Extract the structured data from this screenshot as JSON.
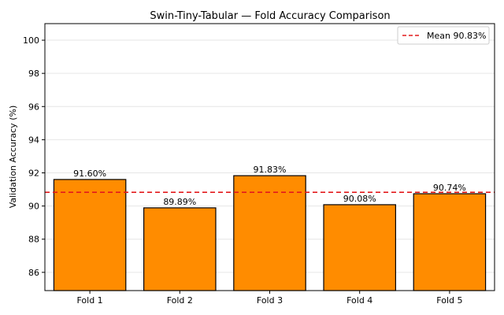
{
  "chart_data": {
    "type": "bar",
    "title": "Swin-Tiny-Tabular — Fold Accuracy Comparison",
    "xlabel": "",
    "ylabel": "Validation Accuracy (%)",
    "categories": [
      "Fold 1",
      "Fold 2",
      "Fold 3",
      "Fold 4",
      "Fold 5"
    ],
    "values": [
      91.6,
      89.89,
      91.83,
      90.08,
      90.74
    ],
    "value_labels": [
      "91.60%",
      "89.89%",
      "91.83%",
      "90.08%",
      "90.74%"
    ],
    "ylim": [
      84.9,
      101.0
    ],
    "yticks": [
      86,
      88,
      90,
      92,
      94,
      96,
      98,
      100
    ],
    "mean_line": {
      "value": 90.83,
      "label": "Mean 90.83%",
      "color": "#e31a1c",
      "style": "dashed"
    },
    "bar_color": "#ff8c00",
    "bar_edge_color": "#000000",
    "grid": true,
    "grid_axis": "y",
    "legend_position": "top-right"
  }
}
